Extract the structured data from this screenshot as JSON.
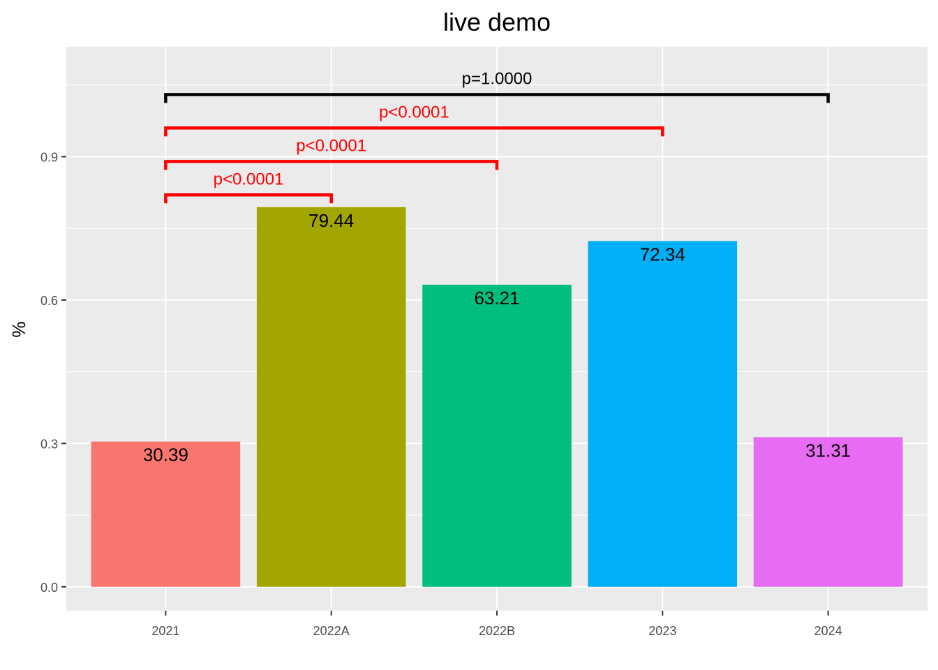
{
  "chart_data": {
    "type": "bar",
    "title": "live demo",
    "xlabel": "",
    "ylabel": "%",
    "categories": [
      "2021",
      "2022A",
      "2022B",
      "2023",
      "2024"
    ],
    "values": [
      0.3039,
      0.7944,
      0.6321,
      0.7234,
      0.3131
    ],
    "value_labels": [
      "30.39",
      "79.44",
      "63.21",
      "72.34",
      "31.31"
    ],
    "colors": [
      "#F8766D",
      "#A3A500",
      "#00BF7D",
      "#00B0F6",
      "#E76BF3"
    ],
    "ylim": [
      -0.05,
      1.13
    ],
    "yticks": [
      0.0,
      0.3,
      0.6,
      0.9
    ],
    "ytick_labels": [
      "0.0",
      "0.3",
      "0.6",
      "0.9"
    ],
    "grid": true,
    "legend": "none",
    "comparisons": [
      {
        "from": "2021",
        "to": "2022A",
        "y": 0.82,
        "label": "p<0.0001",
        "color": "#FF0000"
      },
      {
        "from": "2021",
        "to": "2022B",
        "y": 0.89,
        "label": "p<0.0001",
        "color": "#FF0000"
      },
      {
        "from": "2021",
        "to": "2023",
        "y": 0.96,
        "label": "p<0.0001",
        "color": "#FF0000"
      },
      {
        "from": "2021",
        "to": "2024",
        "y": 1.03,
        "label": "p=1.0000",
        "color": "#000000"
      }
    ]
  }
}
